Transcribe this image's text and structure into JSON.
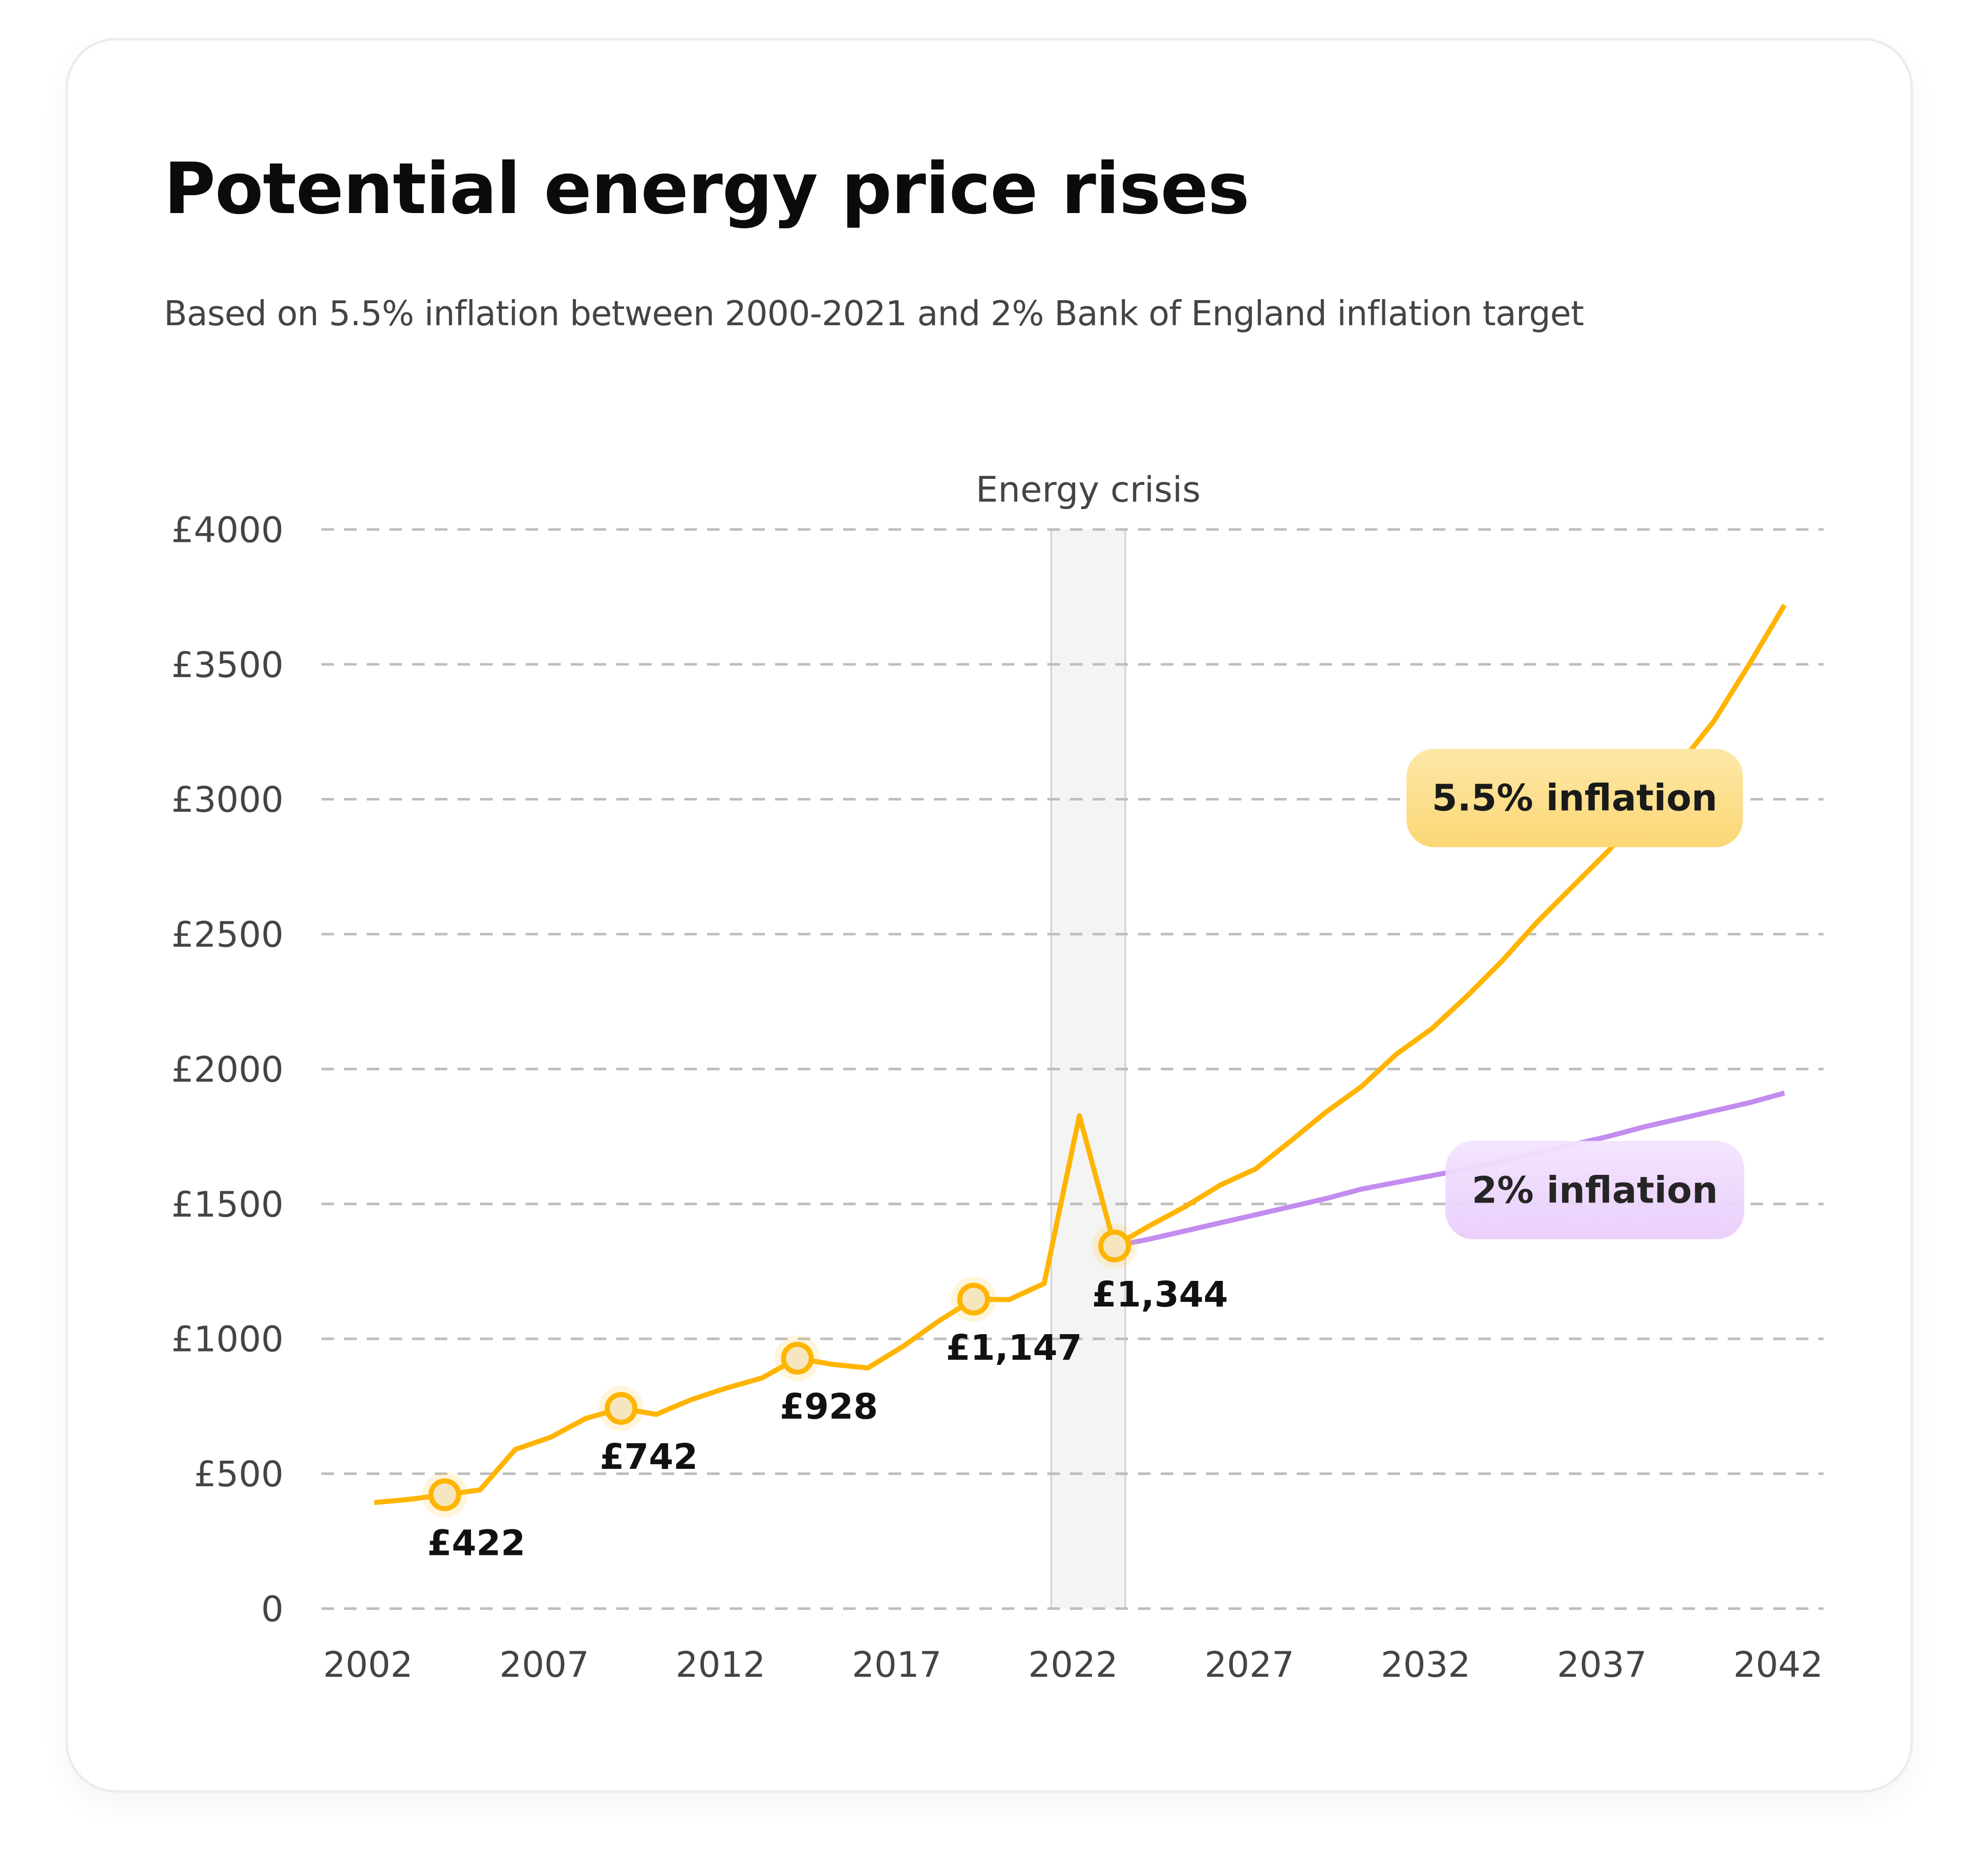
{
  "chart_data": {
    "type": "line",
    "title": "Potential energy price rises",
    "subtitle": "Based on 5.5% inflation between 2000-2021 and 2% Bank of England inflation target",
    "xlabel": "",
    "ylabel": "",
    "ylim": [
      0,
      4000
    ],
    "xlim": [
      2002,
      2042
    ],
    "grid": true,
    "y_ticks": [
      "0",
      "£500",
      "£1000",
      "£1500",
      "£2000",
      "£2500",
      "£3000",
      "£3500",
      "£4000"
    ],
    "y_tick_values": [
      0,
      500,
      1000,
      1500,
      2000,
      2500,
      3000,
      3500,
      4000
    ],
    "x_ticks": [
      "2002",
      "2007",
      "2012",
      "2017",
      "2022",
      "2027",
      "2032",
      "2037",
      "2042"
    ],
    "shaded_region": {
      "label": "Energy crisis",
      "from": 2021.2,
      "to": 2023.3,
      "color": "#f4f4f4"
    },
    "series": [
      {
        "name": "5.5% inflation",
        "color": "#ffb400",
        "x": [
          2002,
          2003,
          2004,
          2005,
          2006,
          2007,
          2008,
          2009,
          2010,
          2011,
          2012,
          2013,
          2014,
          2015,
          2016,
          2017,
          2018,
          2019,
          2020,
          2021,
          2022,
          2023,
          2024,
          2025,
          2026,
          2027,
          2028,
          2029,
          2030,
          2031,
          2032,
          2033,
          2034,
          2035,
          2036,
          2037,
          2038,
          2039,
          2040,
          2041,
          2042
        ],
        "values": [
          393,
          405,
          422,
          440,
          590,
          635,
          705,
          742,
          720,
          775,
          818,
          855,
          928,
          905,
          892,
          972,
          1065,
          1147,
          1145,
          1205,
          1827,
          1344,
          1420,
          1490,
          1570,
          1630,
          1734,
          1841,
          1935,
          2056,
          2150,
          2271,
          2402,
          2547,
          2678,
          2808,
          2958,
          3126,
          3290,
          3500,
          3720
        ]
      },
      {
        "name": "2% inflation",
        "color": "#c38cf0",
        "x": [
          2023,
          2024,
          2025,
          2026,
          2027,
          2028,
          2029,
          2030,
          2031,
          2032,
          2033,
          2034,
          2035,
          2036,
          2037,
          2038,
          2039,
          2040,
          2041,
          2042
        ],
        "values": [
          1344,
          1370,
          1400,
          1430,
          1460,
          1490,
          1520,
          1555,
          1580,
          1605,
          1630,
          1660,
          1690,
          1720,
          1750,
          1785,
          1815,
          1845,
          1875,
          1911
        ]
      }
    ],
    "annotations": [
      {
        "x": 2004,
        "value": 422,
        "label": "£422"
      },
      {
        "x": 2009,
        "value": 742,
        "label": "£742"
      },
      {
        "x": 2014,
        "value": 928,
        "label": "£928"
      },
      {
        "x": 2019,
        "value": 1147,
        "label": "£1,147"
      },
      {
        "x": 2023,
        "value": 1344,
        "label": "£1,344"
      }
    ]
  }
}
